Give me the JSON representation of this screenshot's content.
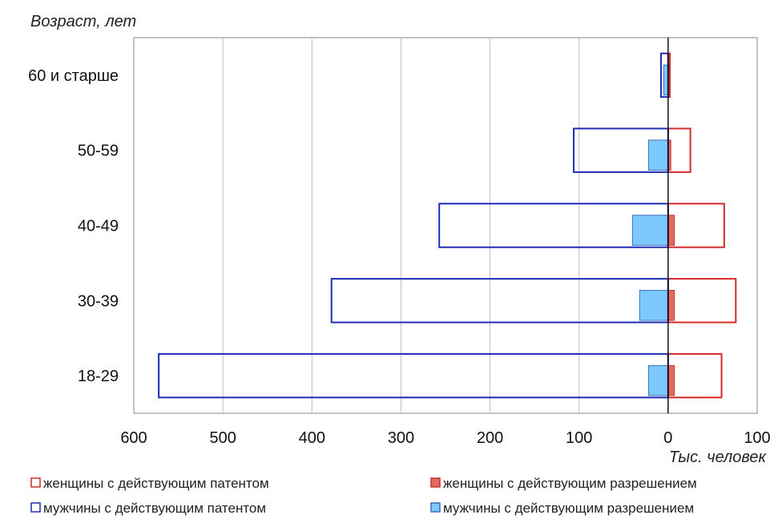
{
  "chart_data": {
    "type": "bar",
    "orientation": "horizontal",
    "ylabel": "Возраст, лет",
    "xlabel": "Тыс. человек",
    "categories": [
      "60 и старше",
      "50-59",
      "40-49",
      "30-39",
      "18-29"
    ],
    "xlim": [
      -600,
      100
    ],
    "xticks": [
      -600,
      -500,
      -400,
      -300,
      -200,
      -100,
      0,
      100
    ],
    "xtick_labels": [
      "600",
      "500",
      "400",
      "300",
      "200",
      "100",
      "0",
      "100"
    ],
    "grid": true,
    "legend_position": "bottom",
    "series": [
      {
        "name": "женщины с действующим патентом",
        "style": "outline",
        "color": "#d42a2a",
        "values": [
          2,
          25,
          63,
          76,
          60
        ]
      },
      {
        "name": "женщины с действующим разрешением",
        "style": "filled",
        "color": "#e5685a",
        "border": "#c0392b",
        "values": [
          2,
          3,
          7,
          7,
          7
        ]
      },
      {
        "name": "мужчины с действующим патентом",
        "style": "outline",
        "color": "#1f2bb5",
        "values": [
          -8,
          -106,
          -257,
          -378,
          -572
        ]
      },
      {
        "name": "мужчины с действующим разрешением",
        "style": "filled",
        "color": "#7cc8ff",
        "border": "#3b6fbf",
        "values": [
          -5,
          -22,
          -40,
          -32,
          -22
        ]
      }
    ]
  }
}
